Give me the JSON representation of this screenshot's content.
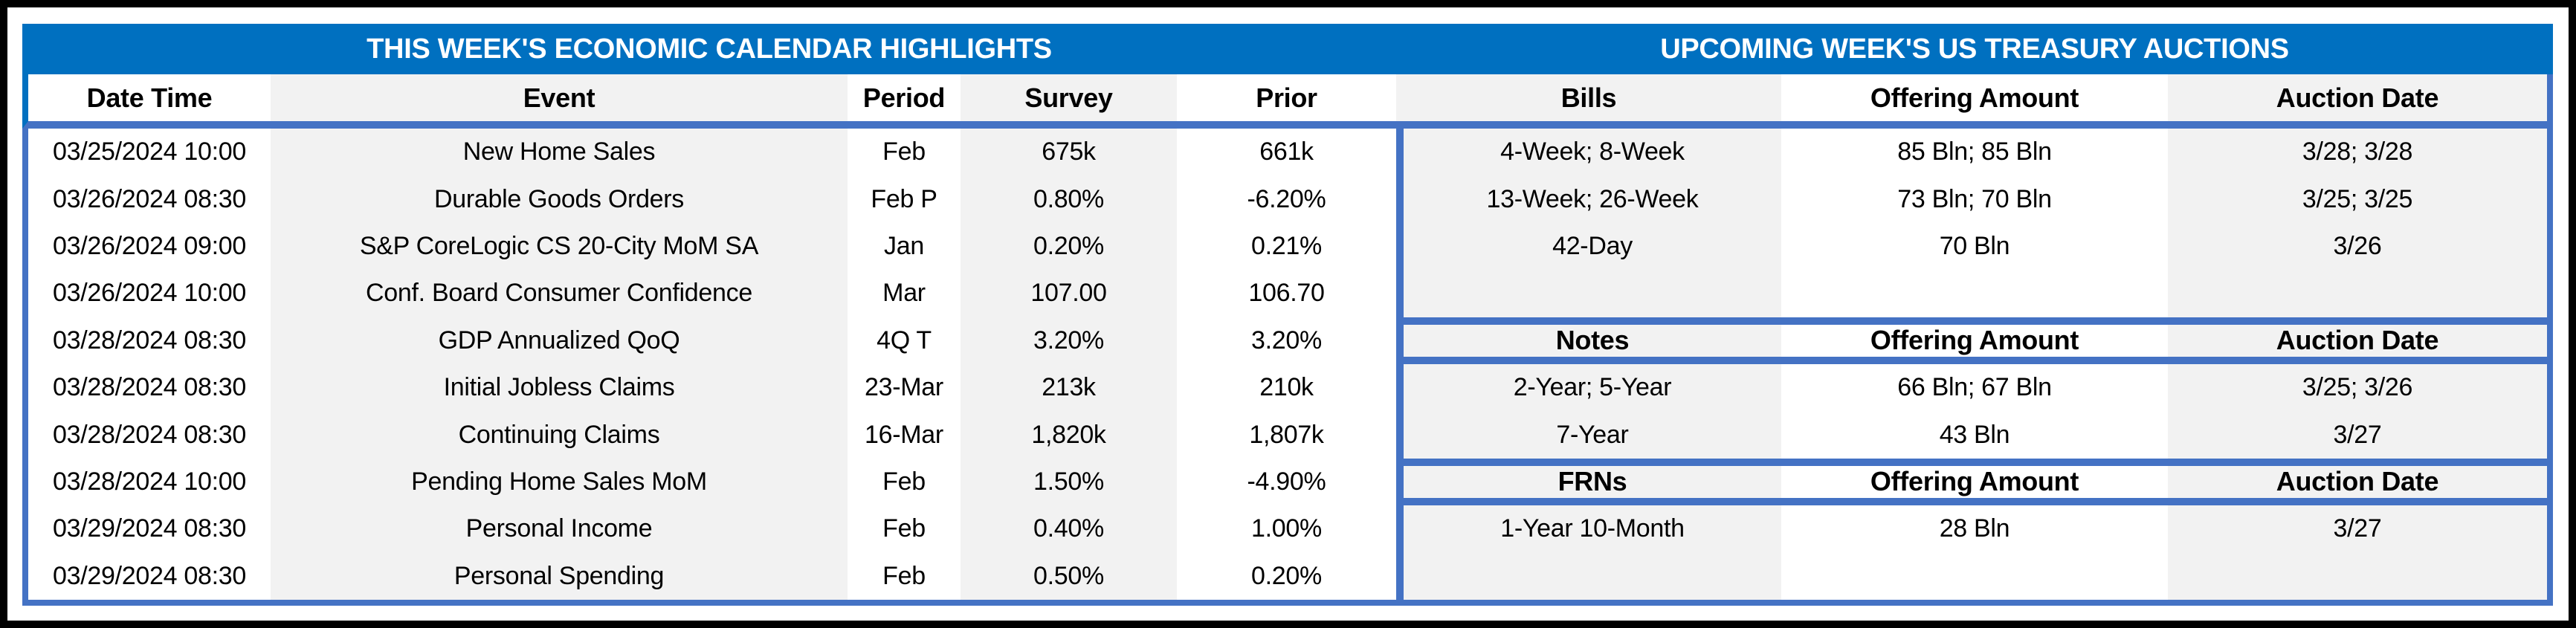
{
  "left_panel": {
    "title": "THIS WEEK'S ECONOMIC CALENDAR HIGHLIGHTS",
    "columns": [
      "Date Time",
      "Event",
      "Period",
      "Survey",
      "Prior"
    ],
    "rows": [
      [
        "03/25/2024 10:00",
        "New Home Sales",
        "Feb",
        "675k",
        "661k"
      ],
      [
        "03/26/2024 08:30",
        "Durable Goods Orders",
        "Feb P",
        "0.80%",
        "-6.20%"
      ],
      [
        "03/26/2024 09:00",
        "S&P CoreLogic CS 20-City MoM SA",
        "Jan",
        "0.20%",
        "0.21%"
      ],
      [
        "03/26/2024 10:00",
        "Conf. Board Consumer Confidence",
        "Mar",
        "107.00",
        "106.70"
      ],
      [
        "03/28/2024 08:30",
        "GDP Annualized QoQ",
        "4Q T",
        "3.20%",
        "3.20%"
      ],
      [
        "03/28/2024 08:30",
        "Initial Jobless Claims",
        "23-Mar",
        "213k",
        "210k"
      ],
      [
        "03/28/2024 08:30",
        "Continuing Claims",
        "16-Mar",
        "1,820k",
        "1,807k"
      ],
      [
        "03/28/2024 10:00",
        "Pending Home Sales MoM",
        "Feb",
        "1.50%",
        "-4.90%"
      ],
      [
        "03/29/2024 08:30",
        "Personal Income",
        "Feb",
        "0.40%",
        "1.00%"
      ],
      [
        "03/29/2024 08:30",
        "Personal Spending",
        "Feb",
        "0.50%",
        "0.20%"
      ]
    ]
  },
  "right_panel": {
    "title": "UPCOMING WEEK'S US TREASURY AUCTIONS",
    "bills": {
      "columns": [
        "Bills",
        "Offering Amount",
        "Auction Date"
      ],
      "rows": [
        [
          "4-Week; 8-Week",
          "85 Bln; 85 Bln",
          "3/28; 3/28"
        ],
        [
          "13-Week; 26-Week",
          "73 Bln; 70 Bln",
          "3/25; 3/25"
        ],
        [
          "42-Day",
          "70 Bln",
          "3/26"
        ],
        [
          "",
          "",
          ""
        ]
      ]
    },
    "notes": {
      "columns": [
        "Notes",
        "Offering Amount",
        "Auction Date"
      ],
      "rows": [
        [
          "2-Year; 5-Year",
          "66 Bln; 67 Bln",
          "3/25; 3/26"
        ],
        [
          "7-Year",
          "43 Bln",
          "3/27"
        ]
      ]
    },
    "frns": {
      "columns": [
        "FRNs",
        "Offering Amount",
        "Auction Date"
      ],
      "rows": [
        [
          "1-Year 10-Month",
          "28 Bln",
          "3/27"
        ],
        [
          "",
          "",
          ""
        ]
      ]
    }
  },
  "colors": {
    "header_band_blue": "#0070C0",
    "table_border_blue": "#4472C4",
    "shaded_column_gray": "#F2F2F2",
    "outer_frame_black": "#000000"
  }
}
